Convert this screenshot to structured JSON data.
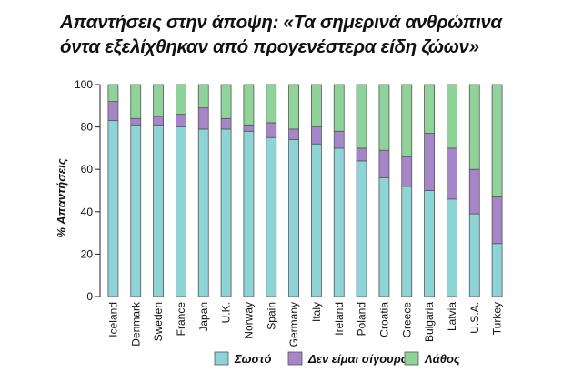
{
  "title": {
    "line1": "Απαντήσεις στην άποψη: «Τα σημερινά ανθρώπινα",
    "line2": "όντα εξελίχθηκαν από προγενέστερα είδη ζώων»"
  },
  "colors": {
    "correct": "#8ed3d6",
    "unsure": "#a685c8",
    "wrong": "#8fd39a",
    "stroke": "#555555"
  },
  "chart_data": {
    "type": "bar",
    "stacked": true,
    "ylabel": "% Απαντήσεις",
    "xlabel": "",
    "ylim": [
      0,
      100
    ],
    "yticks": [
      0,
      20,
      40,
      60,
      80,
      100
    ],
    "categories": [
      "Iceland",
      "Denmark",
      "Sweden",
      "France",
      "Japan",
      "U.K.",
      "Norway",
      "Spain",
      "Germany",
      "Italy",
      "Ireland",
      "Poland",
      "Croatia",
      "Greece",
      "Bulgaria",
      "Latvia",
      "U.S.A.",
      "Turkey"
    ],
    "series": [
      {
        "name": "Σωστό",
        "values": [
          83,
          81,
          81,
          80,
          79,
          79,
          78,
          75,
          74,
          72,
          70,
          64,
          56,
          52,
          50,
          46,
          39,
          25
        ]
      },
      {
        "name": "Δεν είμαι σίγουρος",
        "values": [
          9,
          3,
          4,
          6,
          10,
          5,
          3,
          7,
          5,
          8,
          8,
          6,
          13,
          14,
          27,
          24,
          21,
          22
        ]
      },
      {
        "name": "Λάθος",
        "values": [
          8,
          16,
          15,
          14,
          11,
          16,
          19,
          18,
          21,
          20,
          22,
          30,
          31,
          34,
          23,
          30,
          40,
          53
        ]
      }
    ],
    "legend_position": "bottom"
  }
}
